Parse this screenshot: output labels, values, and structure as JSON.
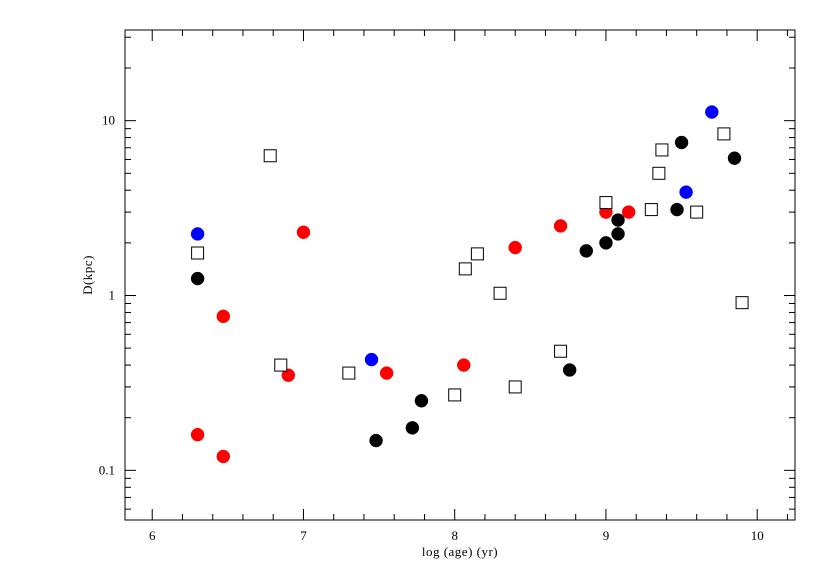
{
  "chart_data": {
    "type": "scatter",
    "xlabel": "log (age) (yr)",
    "ylabel": "D(kpc)",
    "xlim": [
      5.82,
      10.25
    ],
    "ylim": [
      0.052,
      33
    ],
    "y_scale": "log",
    "x_ticks": [
      6,
      7,
      8,
      9,
      10
    ],
    "x_tick_labels": [
      "6",
      "7",
      "8",
      "9",
      "10"
    ],
    "y_ticks": [
      0.1,
      1,
      10
    ],
    "y_tick_labels": [
      "0.1",
      "1",
      "10"
    ],
    "grid": false,
    "legend": "none",
    "series": [
      {
        "marker": "filled-circle",
        "color": "#000000",
        "points": [
          {
            "x": 6.3,
            "y": 1.25
          },
          {
            "x": 7.48,
            "y": 0.148
          },
          {
            "x": 7.72,
            "y": 0.175
          },
          {
            "x": 7.78,
            "y": 0.25
          },
          {
            "x": 8.76,
            "y": 0.375
          },
          {
            "x": 8.87,
            "y": 1.8
          },
          {
            "x": 9.0,
            "y": 2.0
          },
          {
            "x": 9.08,
            "y": 2.25
          },
          {
            "x": 9.08,
            "y": 2.7
          },
          {
            "x": 9.47,
            "y": 3.1
          },
          {
            "x": 9.5,
            "y": 7.5
          },
          {
            "x": 9.85,
            "y": 6.1
          }
        ]
      },
      {
        "marker": "filled-circle",
        "color": "#ff0000",
        "points": [
          {
            "x": 6.3,
            "y": 0.16
          },
          {
            "x": 6.47,
            "y": 0.12
          },
          {
            "x": 6.47,
            "y": 0.76
          },
          {
            "x": 6.9,
            "y": 0.35
          },
          {
            "x": 7.0,
            "y": 2.3
          },
          {
            "x": 7.55,
            "y": 0.36
          },
          {
            "x": 8.06,
            "y": 0.4
          },
          {
            "x": 8.4,
            "y": 1.88
          },
          {
            "x": 8.7,
            "y": 2.5
          },
          {
            "x": 9.0,
            "y": 3.0
          },
          {
            "x": 9.15,
            "y": 3.0
          }
        ]
      },
      {
        "marker": "filled-circle",
        "color": "#0000ff",
        "points": [
          {
            "x": 6.3,
            "y": 2.25
          },
          {
            "x": 7.45,
            "y": 0.43
          },
          {
            "x": 9.53,
            "y": 3.9
          },
          {
            "x": 9.7,
            "y": 11.2
          }
        ]
      },
      {
        "marker": "open-square",
        "color": "#000000",
        "points": [
          {
            "x": 6.3,
            "y": 1.75
          },
          {
            "x": 6.78,
            "y": 6.3
          },
          {
            "x": 6.85,
            "y": 0.4
          },
          {
            "x": 7.3,
            "y": 0.36
          },
          {
            "x": 8.0,
            "y": 0.27
          },
          {
            "x": 8.07,
            "y": 1.42
          },
          {
            "x": 8.15,
            "y": 1.73
          },
          {
            "x": 8.3,
            "y": 1.03
          },
          {
            "x": 8.4,
            "y": 0.3
          },
          {
            "x": 8.7,
            "y": 0.48
          },
          {
            "x": 9.0,
            "y": 3.4
          },
          {
            "x": 9.3,
            "y": 3.1
          },
          {
            "x": 9.35,
            "y": 5.0
          },
          {
            "x": 9.37,
            "y": 6.8
          },
          {
            "x": 9.6,
            "y": 3.0
          },
          {
            "x": 9.78,
            "y": 8.4
          },
          {
            "x": 9.9,
            "y": 0.91
          }
        ]
      }
    ]
  }
}
